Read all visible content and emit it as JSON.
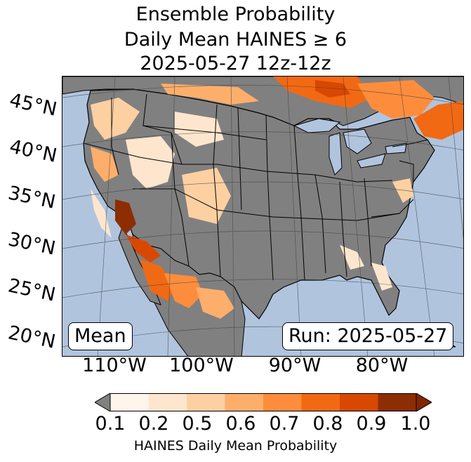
{
  "title": {
    "line1": "Ensemble Probability",
    "line2": "Daily Mean HAINES ≥ 6",
    "line3": "2025-05-27 12z-12z"
  },
  "map": {
    "lat_labels": [
      "45°N",
      "40°N",
      "35°N",
      "30°N",
      "25°N",
      "20°N"
    ],
    "lon_labels": [
      "110°W",
      "100°W",
      "90°W",
      "80°W"
    ],
    "mean_label": "Mean",
    "run_label": "Run: 2025-05-27",
    "colors": {
      "ocean": "#b0c4de",
      "land_below_threshold": "#808080",
      "border": "#000000"
    }
  },
  "colorbar": {
    "ticks": [
      "0.1",
      "0.2",
      "0.5",
      "0.6",
      "0.7",
      "0.8",
      "0.9",
      "1.0"
    ],
    "colors": [
      "#fff5eb",
      "#fee6ce",
      "#fdd0a2",
      "#fdae6b",
      "#fd8d3c",
      "#f16913",
      "#d94801",
      "#8c2d04"
    ],
    "under_color": "#808080",
    "over_color": "#7f2704",
    "label": "HAINES Daily Mean Probability"
  }
}
